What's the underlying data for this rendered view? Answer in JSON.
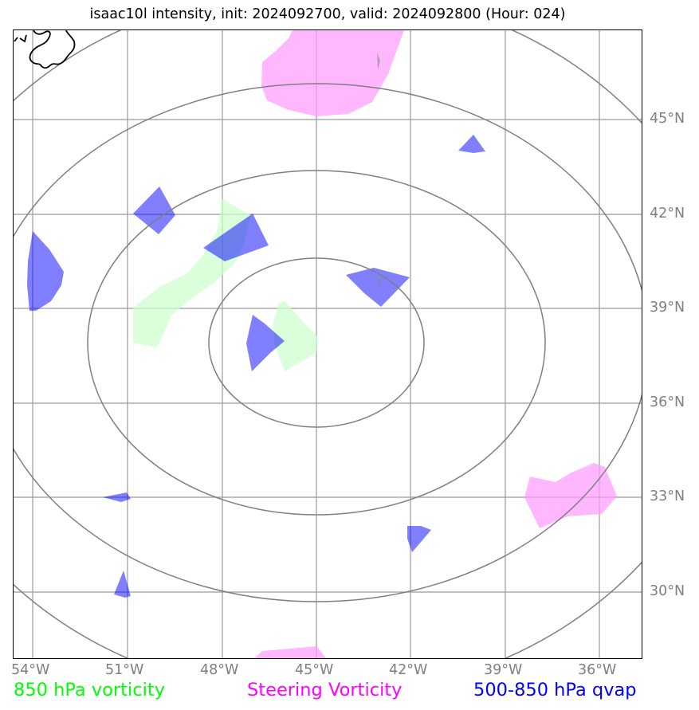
{
  "title": "isaac10l intensity, init: 2024092700, valid: 2024092800 (Hour: 024)",
  "map": {
    "lat_labels": [
      "45°N",
      "42°N",
      "39°N",
      "36°N",
      "33°N",
      "30°N"
    ],
    "lon_labels": [
      "54°W",
      "51°W",
      "48°W",
      "45°W",
      "42°W",
      "39°W",
      "36°W"
    ],
    "lat_values": [
      45,
      42,
      39,
      36,
      33,
      30
    ],
    "lon_values": [
      -54,
      -51,
      -48,
      -45,
      -42,
      -39,
      -36
    ]
  },
  "legend": {
    "vorticity_850": "850 hPa vorticity",
    "steering": "Steering Vorticity",
    "qvap": "500-850 hPa qvap"
  },
  "colors": {
    "vorticity_850": "#00ff00",
    "steering": "#ff00ff",
    "qvap": "#0000ff",
    "grid": "#9b9b9b",
    "rings": "#7f7f7f",
    "coast": "#000000"
  }
}
